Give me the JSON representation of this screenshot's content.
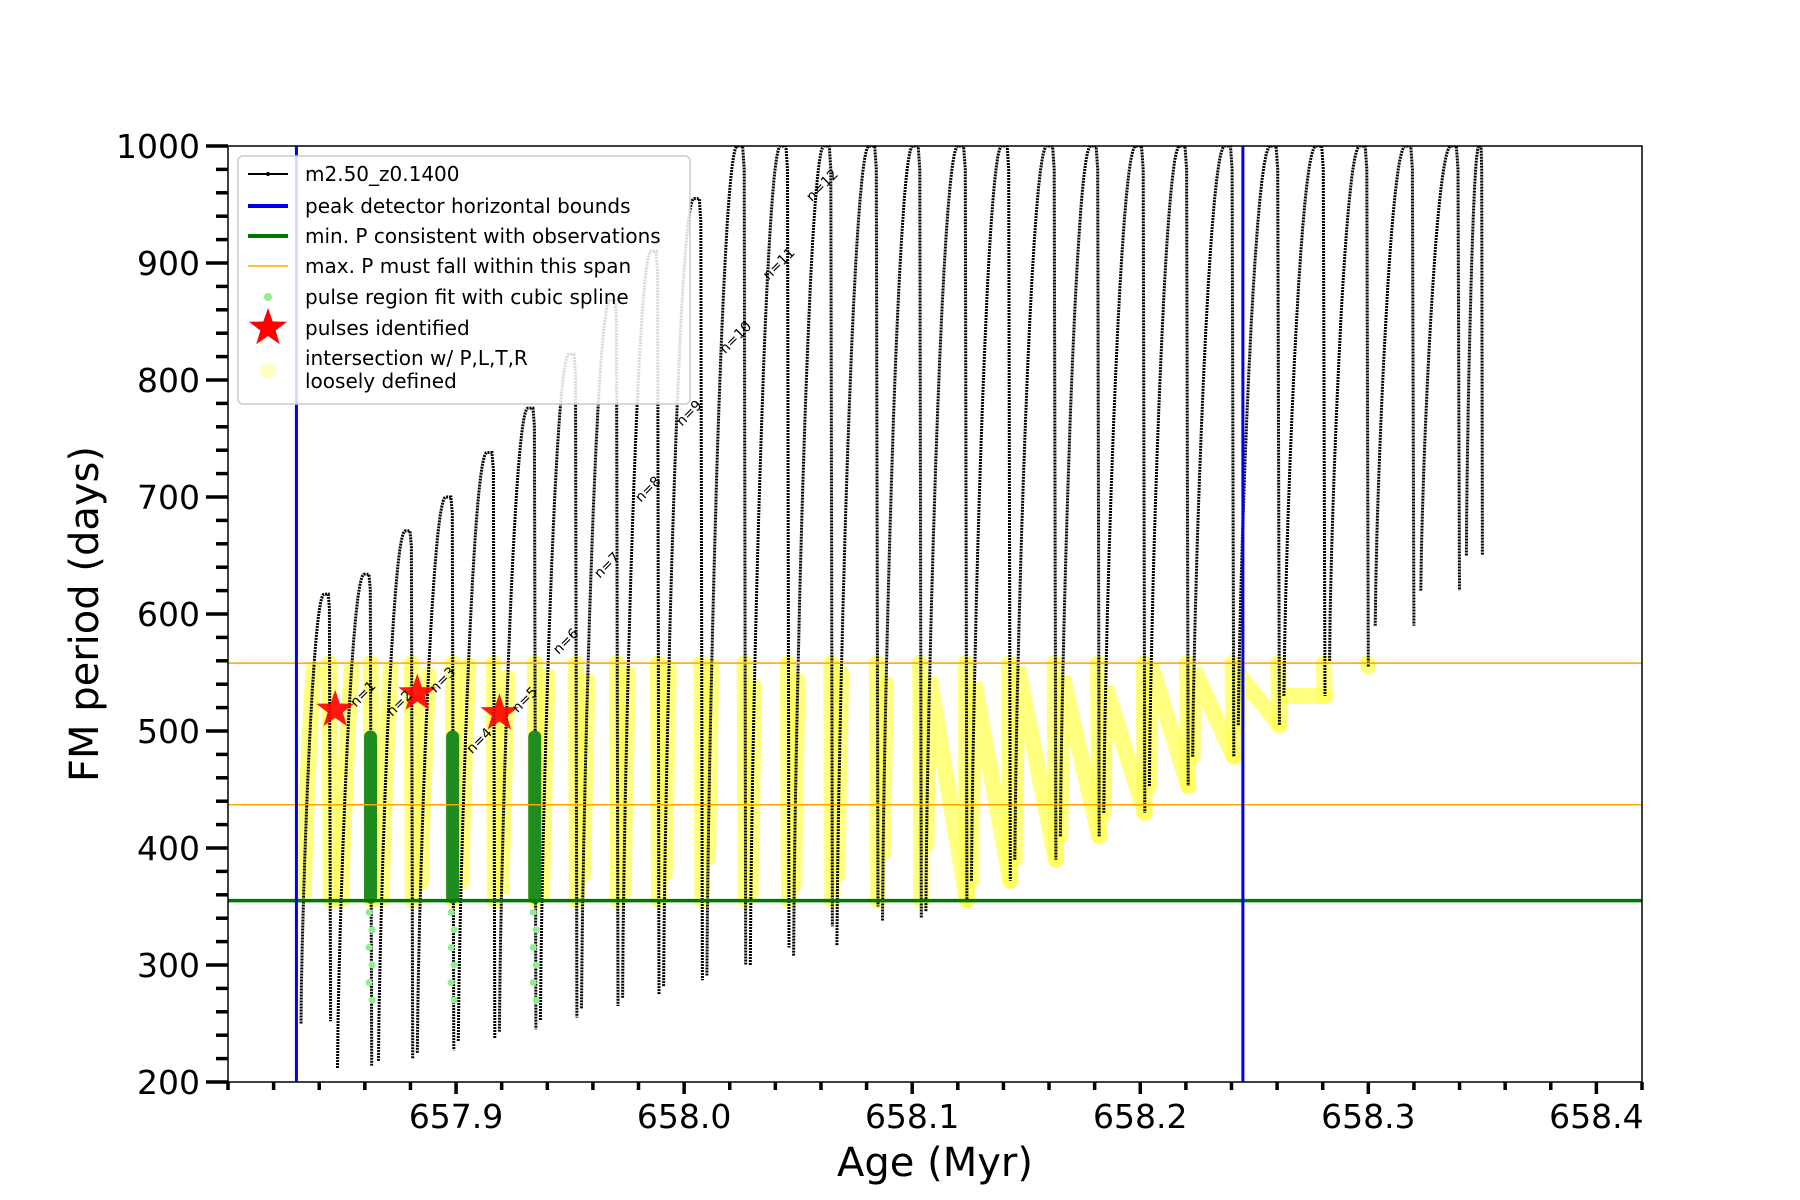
{
  "chart_data": {
    "type": "scatter",
    "xlabel": "Age (Myr)",
    "ylabel": "FM period (days)",
    "xlim": [
      657.8,
      658.42
    ],
    "ylim": [
      200,
      1000
    ],
    "xticks": [
      "657.9",
      "658.0",
      "658.1",
      "658.2",
      "658.3",
      "658.4"
    ],
    "yticks": [
      "200",
      "300",
      "400",
      "500",
      "600",
      "700",
      "800",
      "900",
      "1000"
    ],
    "grid": false,
    "legend_position": "top-left",
    "legend": [
      {
        "label": "m2.50_z0.1400",
        "marker": "line-dot",
        "color": "#000000"
      },
      {
        "label": "peak detector horizontal bounds",
        "marker": "line",
        "color": "#0000ee"
      },
      {
        "label": "min. P consistent with observations",
        "marker": "line",
        "color": "#007700"
      },
      {
        "label": "max. P must fall within this span",
        "marker": "thin-line",
        "color": "#ffa500"
      },
      {
        "label": "pulse region fit with cubic spline",
        "marker": "dot",
        "color": "#90ee90"
      },
      {
        "label": "pulses identified",
        "marker": "star",
        "color": "#ff0000"
      },
      {
        "label": "intersection w/ P,L,T,R",
        "label2": "loosely defined",
        "marker": "big-dot",
        "color": "#ffff99"
      }
    ],
    "vertical_lines": [
      {
        "x": 657.83,
        "color": "#0000ee"
      },
      {
        "x": 658.245,
        "color": "#0000ee"
      }
    ],
    "horizontal_lines": [
      {
        "y": 355,
        "color": "#007700",
        "width": 3.5
      },
      {
        "y": 437,
        "color": "#ffa500",
        "width": 1.5
      },
      {
        "y": 558,
        "color": "#ffa500",
        "width": 1.5
      }
    ],
    "pulses": {
      "x_start": [
        657.832,
        657.848,
        657.866,
        657.883,
        657.901,
        657.919,
        657.937,
        657.955,
        657.973,
        657.991,
        658.01,
        658.029,
        658.048,
        658.067,
        658.087,
        658.106,
        658.126,
        658.145,
        658.165,
        658.184,
        658.204,
        658.223,
        658.243,
        658.263,
        658.283,
        658.303,
        658.323,
        658.343
      ],
      "x_end": [
        657.845,
        657.863,
        657.881,
        657.899,
        657.917,
        657.935,
        657.953,
        657.971,
        657.989,
        658.008,
        658.027,
        658.046,
        658.065,
        658.085,
        658.104,
        658.124,
        658.143,
        658.163,
        658.182,
        658.202,
        658.221,
        658.241,
        658.261,
        658.281,
        658.3,
        658.32,
        658.34,
        658.35
      ],
      "peak": [
        617,
        634,
        671,
        700,
        738,
        776,
        822,
        868,
        910,
        955,
        1000,
        1000,
        1000,
        1000,
        1000,
        1000,
        1000,
        1000,
        1000,
        1000,
        1000,
        1000,
        1000,
        1000,
        1000,
        1000,
        1000,
        1000
      ],
      "min": [
        250,
        212,
        218,
        225,
        235,
        243,
        253,
        263,
        272,
        282,
        291,
        300,
        308,
        317,
        338,
        346,
        372,
        390,
        410,
        430,
        453,
        478,
        505,
        530,
        560,
        590,
        620,
        650
      ],
      "trough": [
        252,
        214,
        220,
        227,
        237,
        245,
        255,
        265,
        275,
        287,
        300,
        315,
        333,
        350,
        340,
        355,
        372,
        390,
        410,
        430,
        453,
        478,
        505,
        530,
        555,
        590,
        620,
        650
      ]
    },
    "series": [
      {
        "name": "m2.50_z0.1400",
        "type": "line-dot",
        "color": "#000000"
      }
    ],
    "yellow_bands_from_pulse_index": 0,
    "green_spline_pulses": [
      1,
      3,
      5
    ],
    "pulses_identified": [
      {
        "x": 657.847,
        "y": 518
      },
      {
        "x": 657.883,
        "y": 532
      },
      {
        "x": 657.919,
        "y": 515
      }
    ],
    "annotations": [
      {
        "text": "n=1",
        "x": 657.856,
        "y": 520
      },
      {
        "text": "n=2",
        "x": 657.872,
        "y": 512
      },
      {
        "text": "n=3",
        "x": 657.891,
        "y": 532
      },
      {
        "text": "n=4",
        "x": 657.907,
        "y": 480
      },
      {
        "text": "n=5",
        "x": 657.927,
        "y": 515
      },
      {
        "text": "n=6",
        "x": 657.945,
        "y": 565
      },
      {
        "text": "n=7",
        "x": 657.963,
        "y": 630
      },
      {
        "text": "n=8",
        "x": 657.981,
        "y": 695
      },
      {
        "text": "n=9",
        "x": 657.999,
        "y": 760
      },
      {
        "text": "n=10",
        "x": 658.018,
        "y": 822
      },
      {
        "text": "n=11",
        "x": 658.037,
        "y": 885
      },
      {
        "text": "n=12",
        "x": 658.056,
        "y": 952
      }
    ]
  }
}
